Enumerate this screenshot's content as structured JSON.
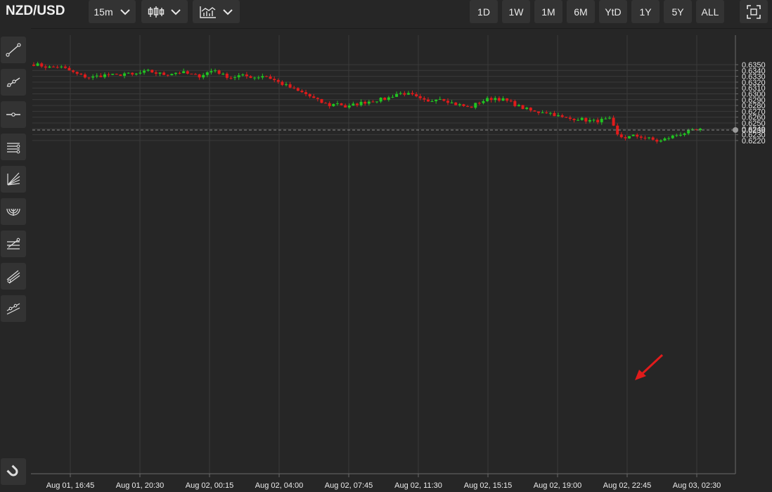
{
  "header": {
    "symbol": "NZD/USD",
    "interval": "15m",
    "ranges": [
      "1D",
      "1W",
      "1M",
      "6M",
      "YtD",
      "1Y",
      "5Y",
      "ALL"
    ]
  },
  "sidebar": {
    "tools": [
      "trend-line-icon",
      "ray-icon",
      "horizontal-line-icon",
      "parallel-channel-icon",
      "fan-icon",
      "arc-icon",
      "fib-retracement-icon",
      "pitchfork-icon",
      "extended-line-icon"
    ],
    "magnet": "magnet-icon"
  },
  "chart_data": {
    "type": "candlestick",
    "ylim": [
      0.6212,
      0.6358
    ],
    "y_ticks": [
      "0.6350",
      "0.6340",
      "0.6330",
      "0.6320",
      "0.6310",
      "0.6300",
      "0.6290",
      "0.6280",
      "0.6270",
      "0.6260",
      "0.6250",
      "0.6240",
      "0.6230",
      "0.6220"
    ],
    "x_ticks": [
      "Aug 01, 16:45",
      "Aug 01, 20:30",
      "Aug 02, 00:15",
      "Aug 02, 04:00",
      "Aug 02, 07:45",
      "Aug 02, 11:30",
      "Aug 02, 15:15",
      "Aug 02, 19:00",
      "Aug 02, 22:45",
      "Aug 03, 02:30"
    ],
    "current_price": "0.6238",
    "current_value": 0.6238,
    "colors": {
      "up": "#21c421",
      "down": "#e01b1b",
      "background": "#262626",
      "grid": "#3a3a3a"
    },
    "path_close": [
      0.6351,
      0.6348,
      0.6345,
      0.6347,
      0.6342,
      0.6335,
      0.633,
      0.6328,
      0.6331,
      0.6333,
      0.6331,
      0.6335,
      0.6332,
      0.6336,
      0.6339,
      0.6335,
      0.6333,
      0.6336,
      0.6337,
      0.6333,
      0.633,
      0.6336,
      0.6341,
      0.6332,
      0.6328,
      0.6331,
      0.633,
      0.6328,
      0.6332,
      0.6325,
      0.6318,
      0.6312,
      0.6305,
      0.63,
      0.6292,
      0.6285,
      0.628,
      0.6285,
      0.6276,
      0.6282,
      0.6285,
      0.6288,
      0.629,
      0.6292,
      0.63,
      0.6301,
      0.6297,
      0.629,
      0.6285,
      0.6294,
      0.629,
      0.6283,
      0.628,
      0.6276,
      0.6285,
      0.629,
      0.6293,
      0.629,
      0.6285,
      0.6278,
      0.6273,
      0.6268,
      0.627,
      0.6266,
      0.626,
      0.6257,
      0.6258,
      0.6255,
      0.6253,
      0.6255,
      0.6256,
      0.6227,
      0.6225,
      0.6228,
      0.6226,
      0.6222,
      0.6218,
      0.6224,
      0.6229,
      0.6233,
      0.6236,
      0.6238
    ],
    "annotation": "arrow"
  }
}
